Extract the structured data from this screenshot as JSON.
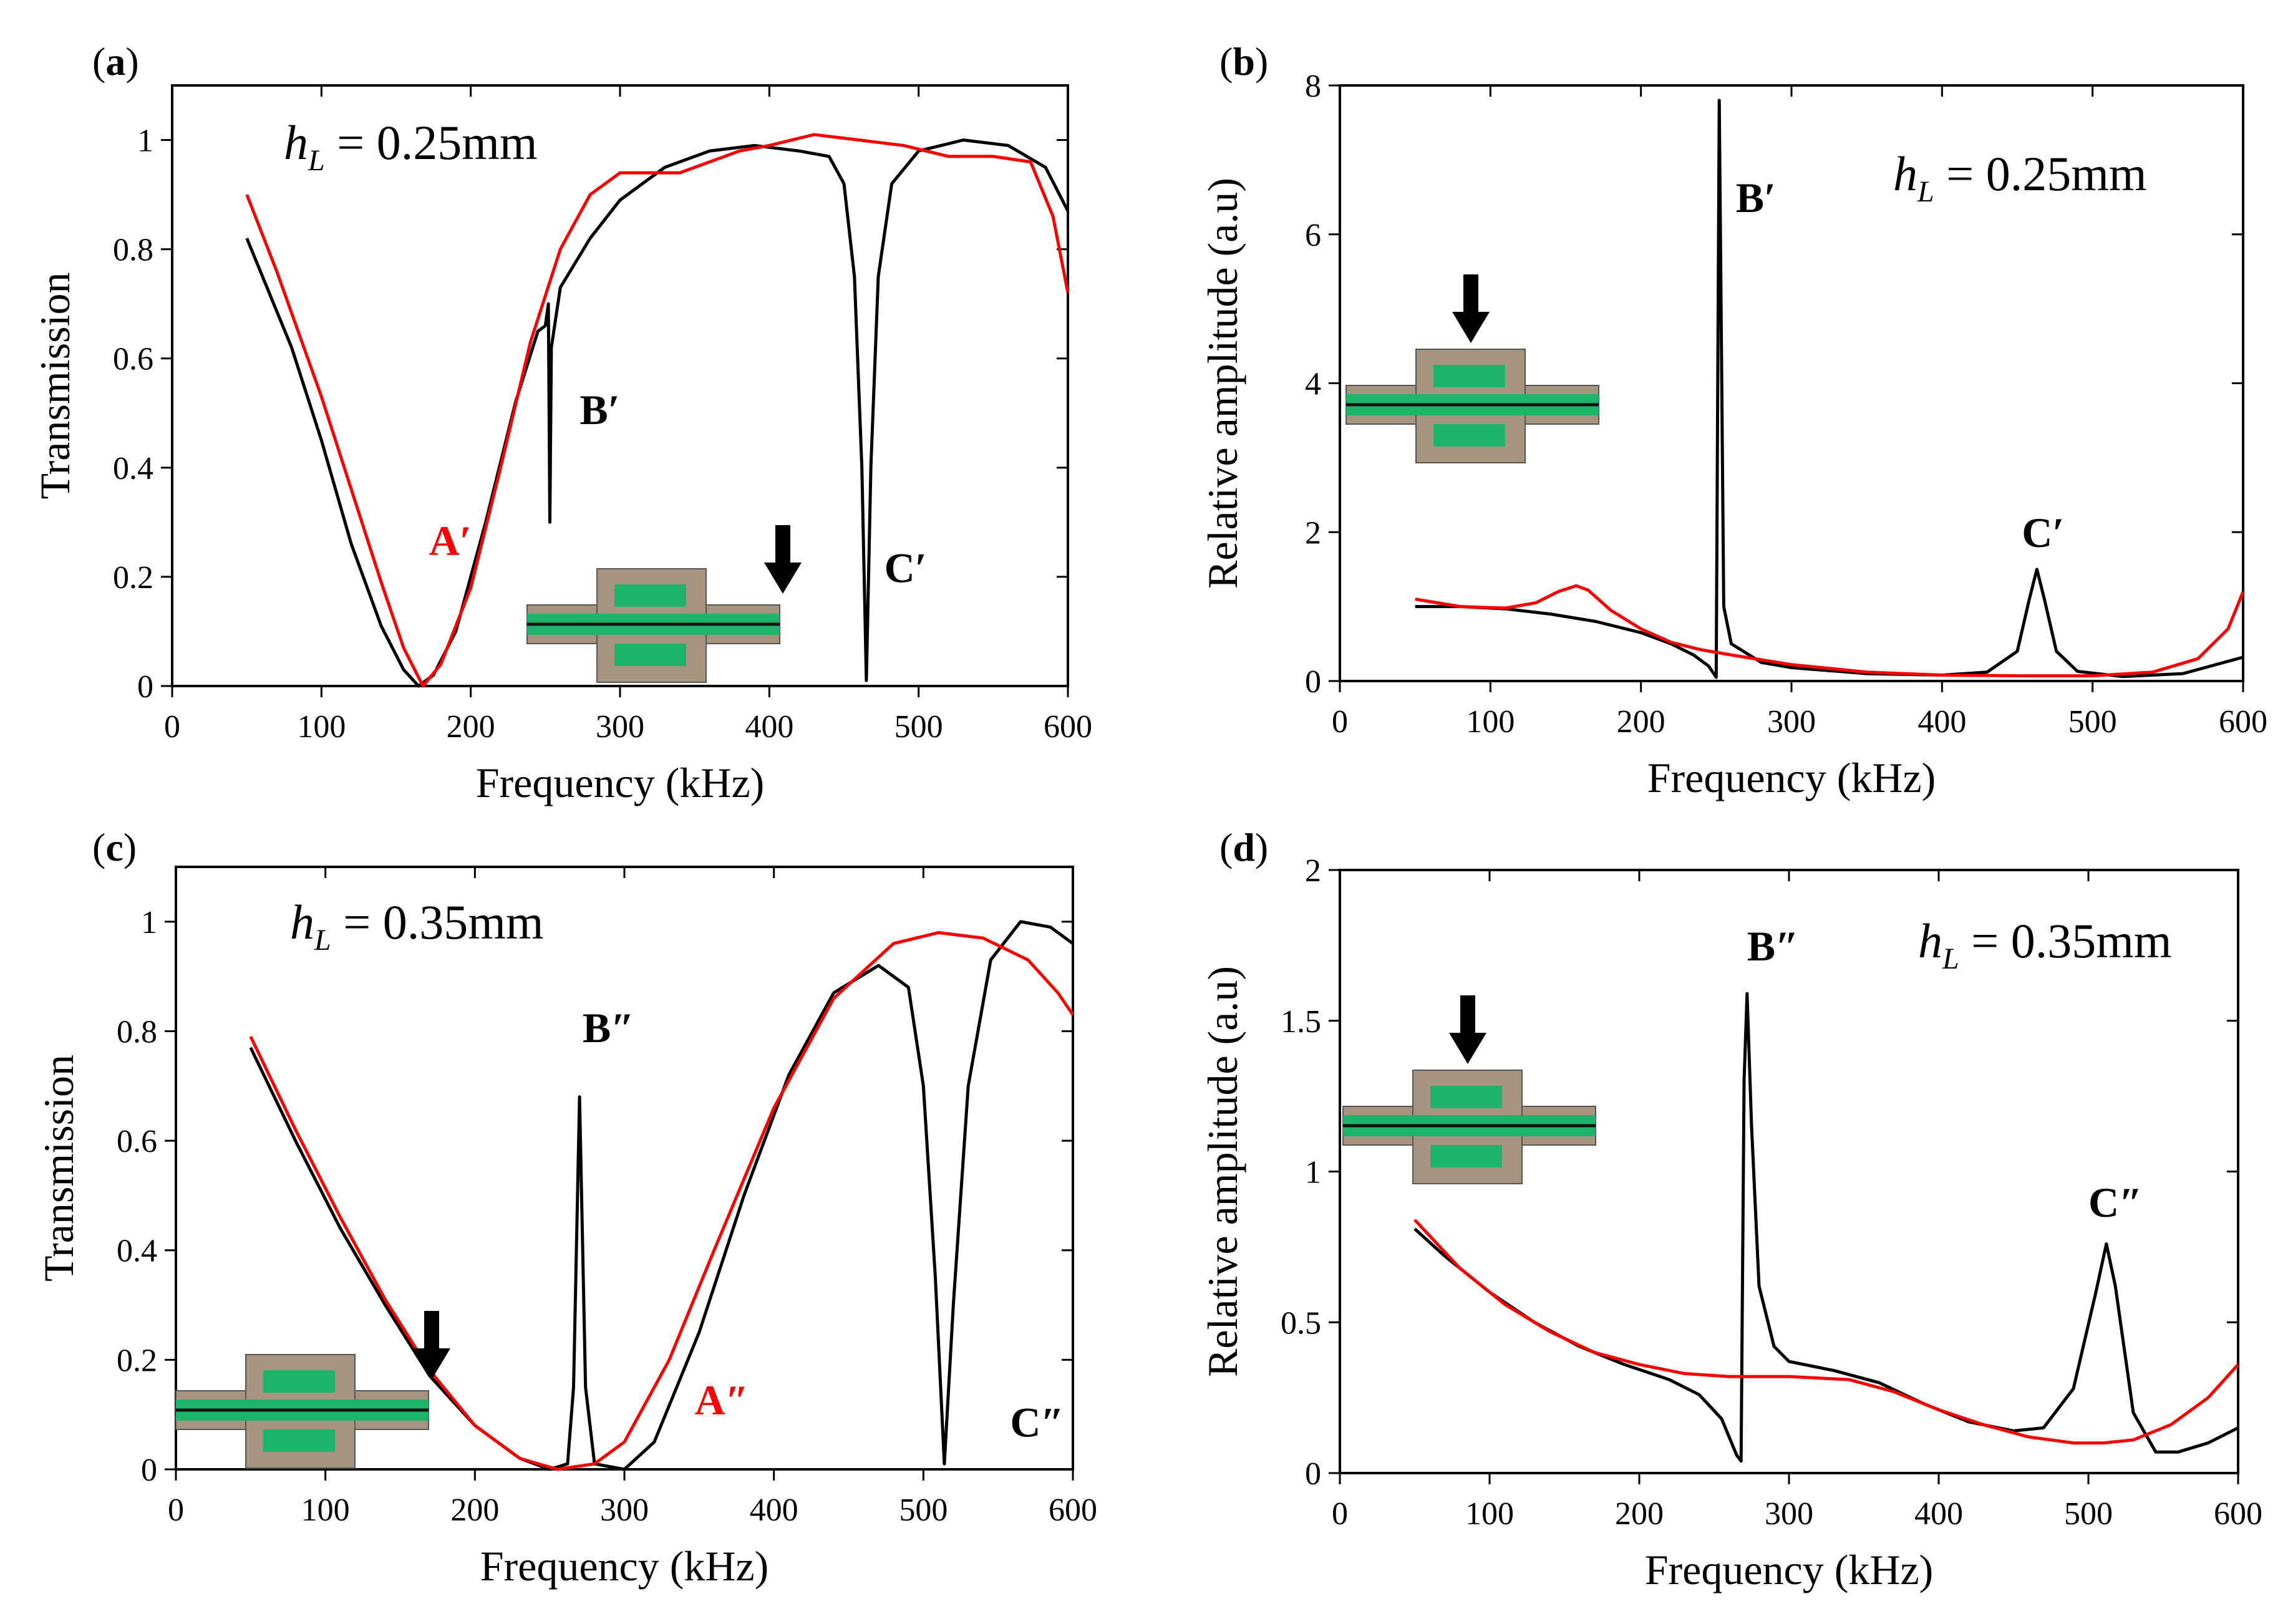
{
  "colors": {
    "series_black": "#000000",
    "series_red": "#ff0000",
    "inset_frame": "#a89580",
    "inset_core": "#1db36b",
    "inset_line": "#111111"
  },
  "chart_data": [
    {
      "id": "a",
      "type": "line",
      "panel_label": "a",
      "xlabel": "Frequency (kHz)",
      "ylabel": "Transmission",
      "xlim": [
        0,
        600
      ],
      "ylim": [
        0,
        1.1
      ],
      "xticks": [
        0,
        100,
        200,
        300,
        400,
        500,
        600
      ],
      "yticks": [
        0,
        0.2,
        0.4,
        0.6,
        0.8,
        1
      ],
      "ytick_labels": [
        "0",
        "0.2",
        "0.4",
        "0.6",
        "0.8",
        "1"
      ],
      "annotation": {
        "symbol": "h",
        "subscript": "L",
        "text": " = 0.25mm"
      },
      "peak_labels": [
        {
          "text": "A′",
          "color": "red",
          "x": 172,
          "y": 0.24
        },
        {
          "text": "B′",
          "color": "black",
          "x": 273,
          "y": 0.48
        },
        {
          "text": "C′",
          "color": "black",
          "x": 477,
          "y": 0.19
        }
      ],
      "inset": {
        "arrow": "right",
        "x": 240,
        "y": 0.09
      },
      "series": [
        {
          "name": "black",
          "color": "#000000",
          "points": [
            [
              50,
              0.82
            ],
            [
              80,
              0.62
            ],
            [
              100,
              0.45
            ],
            [
              120,
              0.26
            ],
            [
              140,
              0.11
            ],
            [
              155,
              0.03
            ],
            [
              165,
              0.0
            ],
            [
              175,
              0.02
            ],
            [
              190,
              0.1
            ],
            [
              210,
              0.3
            ],
            [
              230,
              0.52
            ],
            [
              245,
              0.65
            ],
            [
              250,
              0.66
            ],
            [
              252,
              0.7
            ],
            [
              253,
              0.3
            ],
            [
              254,
              0.62
            ],
            [
              260,
              0.73
            ],
            [
              280,
              0.82
            ],
            [
              300,
              0.89
            ],
            [
              330,
              0.95
            ],
            [
              360,
              0.98
            ],
            [
              390,
              0.99
            ],
            [
              420,
              0.98
            ],
            [
              440,
              0.97
            ],
            [
              450,
              0.92
            ],
            [
              457,
              0.75
            ],
            [
              462,
              0.4
            ],
            [
              465,
              0.01
            ],
            [
              468,
              0.4
            ],
            [
              473,
              0.75
            ],
            [
              482,
              0.92
            ],
            [
              500,
              0.98
            ],
            [
              530,
              1.0
            ],
            [
              560,
              0.99
            ],
            [
              585,
              0.95
            ],
            [
              600,
              0.87
            ]
          ]
        },
        {
          "name": "red",
          "color": "#ff0000",
          "points": [
            [
              50,
              0.9
            ],
            [
              70,
              0.76
            ],
            [
              100,
              0.53
            ],
            [
              120,
              0.36
            ],
            [
              140,
              0.19
            ],
            [
              155,
              0.07
            ],
            [
              168,
              0.0
            ],
            [
              180,
              0.04
            ],
            [
              200,
              0.18
            ],
            [
              220,
              0.4
            ],
            [
              240,
              0.63
            ],
            [
              260,
              0.8
            ],
            [
              280,
              0.9
            ],
            [
              300,
              0.94
            ],
            [
              320,
              0.94
            ],
            [
              340,
              0.94
            ],
            [
              360,
              0.96
            ],
            [
              380,
              0.98
            ],
            [
              400,
              0.99
            ],
            [
              430,
              1.01
            ],
            [
              460,
              1.0
            ],
            [
              490,
              0.99
            ],
            [
              520,
              0.97
            ],
            [
              550,
              0.97
            ],
            [
              575,
              0.96
            ],
            [
              590,
              0.86
            ],
            [
              600,
              0.72
            ]
          ]
        }
      ]
    },
    {
      "id": "b",
      "type": "line",
      "panel_label": "b",
      "xlabel": "Frequency (kHz)",
      "ylabel": "Relative amplitude (a.u)",
      "xlim": [
        0,
        600
      ],
      "ylim": [
        0,
        8
      ],
      "xticks": [
        0,
        100,
        200,
        300,
        400,
        500,
        600
      ],
      "yticks": [
        0,
        2,
        4,
        6,
        8
      ],
      "ytick_labels": [
        "0",
        "2",
        "4",
        "6",
        "8"
      ],
      "annotation": {
        "symbol": "h",
        "subscript": "L",
        "text": " = 0.25mm"
      },
      "peak_labels": [
        {
          "text": "B′",
          "color": "black",
          "x": 263,
          "y": 6.3
        },
        {
          "text": "C′",
          "color": "black",
          "x": 453,
          "y": 1.8
        }
      ],
      "inset": {
        "arrow": "top",
        "x": 8,
        "y": 4.6
      },
      "series": [
        {
          "name": "black",
          "color": "#000000",
          "points": [
            [
              50,
              1.0
            ],
            [
              80,
              1.0
            ],
            [
              110,
              0.97
            ],
            [
              140,
              0.9
            ],
            [
              170,
              0.8
            ],
            [
              200,
              0.65
            ],
            [
              220,
              0.5
            ],
            [
              235,
              0.35
            ],
            [
              245,
              0.2
            ],
            [
              250,
              0.05
            ],
            [
              252,
              7.8
            ],
            [
              255,
              1.0
            ],
            [
              260,
              0.5
            ],
            [
              280,
              0.25
            ],
            [
              300,
              0.18
            ],
            [
              350,
              0.1
            ],
            [
              400,
              0.08
            ],
            [
              430,
              0.12
            ],
            [
              450,
              0.4
            ],
            [
              458,
              1.1
            ],
            [
              463,
              1.5
            ],
            [
              468,
              1.1
            ],
            [
              476,
              0.4
            ],
            [
              490,
              0.13
            ],
            [
              520,
              0.06
            ],
            [
              560,
              0.1
            ],
            [
              600,
              0.32
            ]
          ]
        },
        {
          "name": "red",
          "color": "#ff0000",
          "points": [
            [
              50,
              1.1
            ],
            [
              80,
              1.0
            ],
            [
              110,
              0.98
            ],
            [
              130,
              1.05
            ],
            [
              145,
              1.2
            ],
            [
              157,
              1.28
            ],
            [
              165,
              1.22
            ],
            [
              180,
              0.95
            ],
            [
              200,
              0.7
            ],
            [
              220,
              0.52
            ],
            [
              240,
              0.42
            ],
            [
              260,
              0.35
            ],
            [
              300,
              0.22
            ],
            [
              350,
              0.12
            ],
            [
              400,
              0.08
            ],
            [
              450,
              0.07
            ],
            [
              500,
              0.07
            ],
            [
              540,
              0.12
            ],
            [
              570,
              0.3
            ],
            [
              590,
              0.7
            ],
            [
              600,
              1.2
            ]
          ]
        }
      ]
    },
    {
      "id": "c",
      "type": "line",
      "panel_label": "c",
      "xlabel": "Frequency (kHz)",
      "ylabel": "Transmission",
      "xlim": [
        0,
        600
      ],
      "ylim": [
        0,
        1.1
      ],
      "xticks": [
        0,
        100,
        200,
        300,
        400,
        500,
        600
      ],
      "yticks": [
        0,
        0.2,
        0.4,
        0.6,
        0.8,
        1
      ],
      "ytick_labels": [
        "0",
        "0.2",
        "0.4",
        "0.6",
        "0.8",
        "1"
      ],
      "annotation": {
        "symbol": "h",
        "subscript": "L",
        "text": " = 0.35mm"
      },
      "peak_labels": [
        {
          "text": "B″",
          "color": "black",
          "x": 272,
          "y": 0.78
        },
        {
          "text": "A″",
          "color": "red",
          "x": 347,
          "y": 0.1
        },
        {
          "text": "C″",
          "color": "black",
          "x": 558,
          "y": 0.06
        }
      ],
      "inset": {
        "arrow": "right",
        "x": 0,
        "y": 0.2
      },
      "series": [
        {
          "name": "black",
          "color": "#000000",
          "points": [
            [
              50,
              0.77
            ],
            [
              80,
              0.6
            ],
            [
              110,
              0.44
            ],
            [
              140,
              0.3
            ],
            [
              170,
              0.17
            ],
            [
              200,
              0.08
            ],
            [
              230,
              0.02
            ],
            [
              250,
              0.0
            ],
            [
              262,
              0.01
            ],
            [
              266,
              0.15
            ],
            [
              270,
              0.68
            ],
            [
              274,
              0.15
            ],
            [
              280,
              0.01
            ],
            [
              300,
              0.0
            ],
            [
              320,
              0.05
            ],
            [
              350,
              0.25
            ],
            [
              380,
              0.5
            ],
            [
              410,
              0.72
            ],
            [
              440,
              0.87
            ],
            [
              470,
              0.92
            ],
            [
              490,
              0.88
            ],
            [
              500,
              0.7
            ],
            [
              508,
              0.35
            ],
            [
              514,
              0.01
            ],
            [
              520,
              0.3
            ],
            [
              530,
              0.7
            ],
            [
              545,
              0.93
            ],
            [
              565,
              1.0
            ],
            [
              585,
              0.99
            ],
            [
              600,
              0.96
            ]
          ]
        },
        {
          "name": "red",
          "color": "#ff0000",
          "points": [
            [
              50,
              0.79
            ],
            [
              80,
              0.62
            ],
            [
              110,
              0.46
            ],
            [
              140,
              0.31
            ],
            [
              170,
              0.18
            ],
            [
              200,
              0.08
            ],
            [
              230,
              0.02
            ],
            [
              255,
              0.0
            ],
            [
              280,
              0.01
            ],
            [
              300,
              0.05
            ],
            [
              330,
              0.2
            ],
            [
              360,
              0.4
            ],
            [
              400,
              0.66
            ],
            [
              440,
              0.86
            ],
            [
              480,
              0.96
            ],
            [
              510,
              0.98
            ],
            [
              540,
              0.97
            ],
            [
              570,
              0.93
            ],
            [
              590,
              0.87
            ],
            [
              600,
              0.83
            ]
          ]
        }
      ]
    },
    {
      "id": "d",
      "type": "line",
      "panel_label": "d",
      "xlabel": "Frequency (kHz)",
      "ylabel": "Relative amplitude (a.u)",
      "xlim": [
        0,
        600
      ],
      "ylim": [
        0,
        2
      ],
      "xticks": [
        0,
        100,
        200,
        300,
        400,
        500,
        600
      ],
      "yticks": [
        0,
        0.5,
        1,
        1.5,
        2
      ],
      "ytick_labels": [
        "0",
        "0.5",
        "1",
        "1.5",
        "2"
      ],
      "annotation": {
        "symbol": "h",
        "subscript": "L",
        "text": " = 0.35mm"
      },
      "peak_labels": [
        {
          "text": "B″",
          "color": "black",
          "x": 272,
          "y": 1.7
        },
        {
          "text": "C″",
          "color": "black",
          "x": 500,
          "y": 0.85
        }
      ],
      "inset": {
        "arrow": "top",
        "x": 0,
        "y": 1.35
      },
      "series": [
        {
          "name": "black",
          "color": "#000000",
          "points": [
            [
              50,
              0.81
            ],
            [
              70,
              0.72
            ],
            [
              100,
              0.6
            ],
            [
              130,
              0.5
            ],
            [
              160,
              0.42
            ],
            [
              190,
              0.36
            ],
            [
              220,
              0.31
            ],
            [
              240,
              0.26
            ],
            [
              255,
              0.18
            ],
            [
              265,
              0.06
            ],
            [
              268,
              0.04
            ],
            [
              270,
              1.3
            ],
            [
              272,
              1.59
            ],
            [
              275,
              1.15
            ],
            [
              280,
              0.62
            ],
            [
              290,
              0.42
            ],
            [
              300,
              0.37
            ],
            [
              330,
              0.34
            ],
            [
              360,
              0.3
            ],
            [
              390,
              0.23
            ],
            [
              420,
              0.17
            ],
            [
              450,
              0.14
            ],
            [
              470,
              0.15
            ],
            [
              490,
              0.28
            ],
            [
              505,
              0.6
            ],
            [
              512,
              0.76
            ],
            [
              518,
              0.62
            ],
            [
              530,
              0.2
            ],
            [
              545,
              0.07
            ],
            [
              560,
              0.07
            ],
            [
              580,
              0.1
            ],
            [
              600,
              0.15
            ]
          ]
        },
        {
          "name": "red",
          "color": "#ff0000",
          "points": [
            [
              50,
              0.84
            ],
            [
              80,
              0.68
            ],
            [
              110,
              0.56
            ],
            [
              140,
              0.47
            ],
            [
              170,
              0.4
            ],
            [
              200,
              0.36
            ],
            [
              230,
              0.33
            ],
            [
              260,
              0.32
            ],
            [
              300,
              0.32
            ],
            [
              340,
              0.31
            ],
            [
              370,
              0.27
            ],
            [
              400,
              0.21
            ],
            [
              430,
              0.16
            ],
            [
              460,
              0.12
            ],
            [
              490,
              0.1
            ],
            [
              510,
              0.1
            ],
            [
              530,
              0.11
            ],
            [
              555,
              0.16
            ],
            [
              580,
              0.25
            ],
            [
              600,
              0.36
            ]
          ]
        }
      ]
    }
  ]
}
